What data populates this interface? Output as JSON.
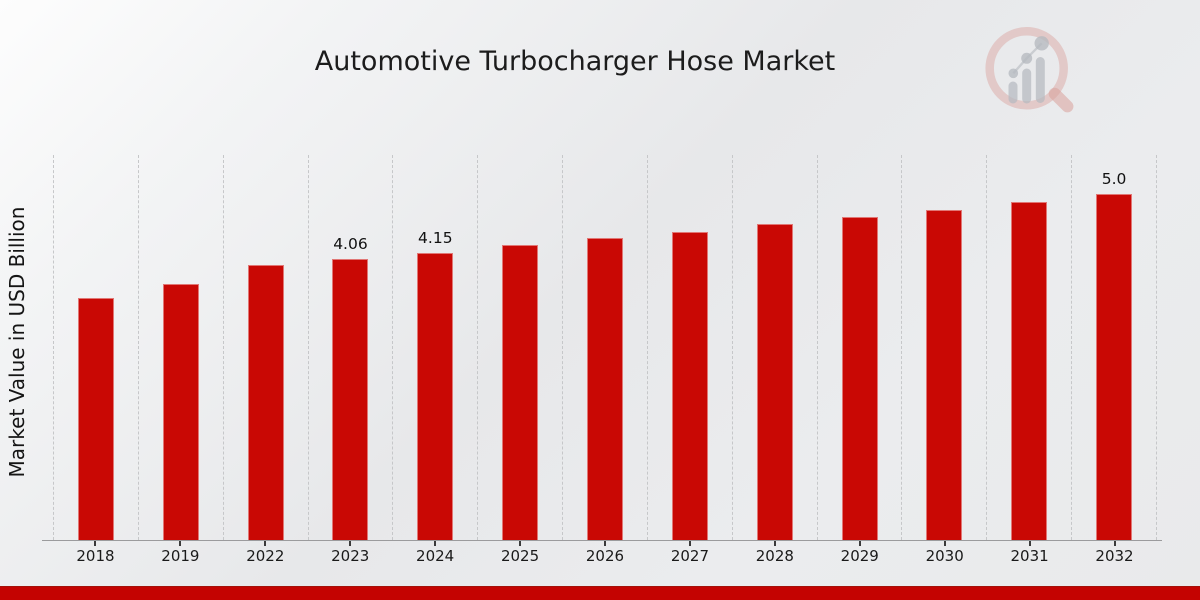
{
  "title": "Automotive Turbocharger Hose Market",
  "ylabel": "Market Value in USD Billion",
  "colors": {
    "bar": "#c90804",
    "bottom_band": "#c40301",
    "gridline": "#c6c7c9",
    "text": "#1a1a1a",
    "background_light": "#fdfdfd",
    "background_gray": "#e7e8ea"
  },
  "logo_icon": "magnifier-growth-chart-watermark",
  "chart_data": {
    "type": "bar",
    "title": "Automotive Turbocharger Hose Market",
    "xlabel": "",
    "ylabel": "Market Value in USD Billion",
    "categories": [
      "2018",
      "2019",
      "2022",
      "2023",
      "2024",
      "2025",
      "2026",
      "2027",
      "2028",
      "2029",
      "2030",
      "2031",
      "2032"
    ],
    "values": [
      3.5,
      3.7,
      3.97,
      4.06,
      4.15,
      4.26,
      4.36,
      4.45,
      4.56,
      4.66,
      4.76,
      4.88,
      5.0
    ],
    "data_labels": [
      "",
      "",
      "",
      "4.06",
      "4.15",
      "",
      "",
      "",
      "",
      "",
      "",
      "",
      "5.0"
    ],
    "bar_color": "#c90804",
    "ylim": [
      0,
      5.56
    ],
    "grid": "vertical-dashed",
    "legend": "none",
    "y_axis_ticks_visible": false
  }
}
